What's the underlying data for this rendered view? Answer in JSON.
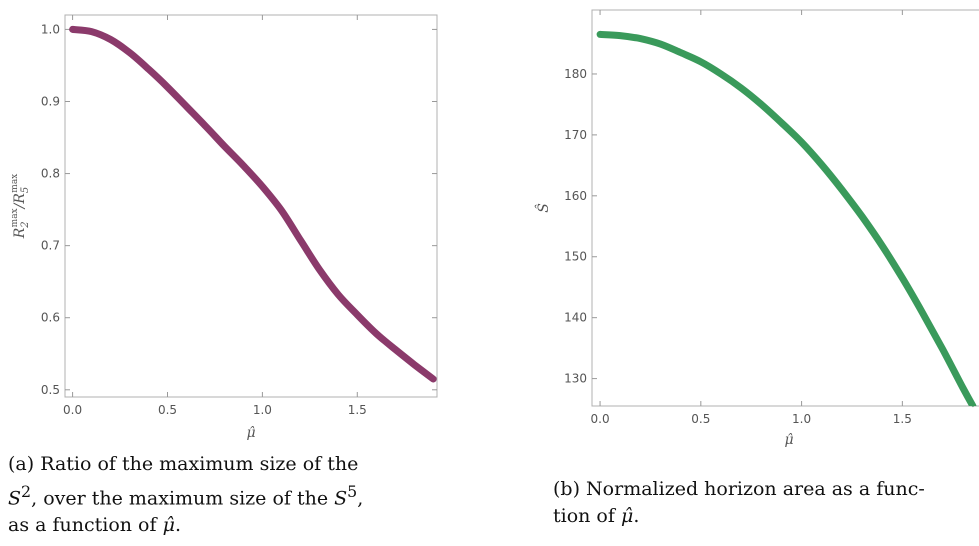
{
  "chart_data": [
    {
      "id": "a",
      "type": "line",
      "title": "",
      "xlabel": "μ̂",
      "ylabel": "R2max / R5max",
      "ylabel_parts": {
        "base1": "R",
        "sub1": "2",
        "sup1": "max",
        "sep": "/",
        "base2": "R",
        "sub2": "5",
        "sup2": "max"
      },
      "xlim": [
        -0.04,
        1.92
      ],
      "ylim": [
        0.49,
        1.02
      ],
      "xticks": [
        0.0,
        0.5,
        1.0,
        1.5
      ],
      "xtick_labels": [
        "0.0",
        "0.5",
        "1.0",
        "1.5"
      ],
      "yticks": [
        0.5,
        0.6,
        0.7,
        0.8,
        0.9,
        1.0
      ],
      "ytick_labels": [
        "0.5",
        "0.6",
        "0.7",
        "0.8",
        "0.9",
        "1.0"
      ],
      "grid": false,
      "series": [
        {
          "color": "#8b3a6b",
          "x": [
            0.0,
            0.1,
            0.2,
            0.3,
            0.4,
            0.5,
            0.6,
            0.7,
            0.8,
            0.9,
            1.0,
            1.1,
            1.2,
            1.3,
            1.4,
            1.5,
            1.6,
            1.7,
            1.8,
            1.9
          ],
          "y": [
            1.0,
            0.997,
            0.986,
            0.968,
            0.945,
            0.92,
            0.893,
            0.866,
            0.838,
            0.811,
            0.782,
            0.749,
            0.708,
            0.667,
            0.632,
            0.604,
            0.578,
            0.556,
            0.535,
            0.515
          ]
        }
      ]
    },
    {
      "id": "b",
      "type": "line",
      "title": "",
      "xlabel": "μ̂",
      "ylabel": "Ŝ",
      "xlim": [
        -0.04,
        1.92
      ],
      "ylim": [
        125.5,
        190.5
      ],
      "xticks": [
        0.0,
        0.5,
        1.0,
        1.5
      ],
      "xtick_labels": [
        "0.0",
        "0.5",
        "1.0",
        "1.5"
      ],
      "yticks": [
        130,
        140,
        150,
        160,
        170,
        180
      ],
      "ytick_labels": [
        "130",
        "140",
        "150",
        "160",
        "170",
        "180"
      ],
      "grid": false,
      "series": [
        {
          "color": "#3a9a5b",
          "x": [
            0.0,
            0.1,
            0.2,
            0.3,
            0.4,
            0.5,
            0.6,
            0.7,
            0.8,
            0.9,
            1.0,
            1.1,
            1.2,
            1.3,
            1.4,
            1.5,
            1.6,
            1.7,
            1.8,
            1.85
          ],
          "y": [
            186.5,
            186.3,
            185.8,
            184.9,
            183.5,
            182.0,
            180.0,
            177.7,
            175.0,
            172.0,
            168.8,
            165.1,
            161.0,
            156.6,
            151.8,
            146.5,
            140.8,
            134.8,
            128.5,
            125.5
          ]
        }
      ]
    }
  ],
  "captions": {
    "a": {
      "label": "(a)",
      "line1": "Ratio of the maximum size of the",
      "line2_pre": "S",
      "line2_sup": "2",
      "line2_mid": ", over the maximum size of the",
      "line2_s": "S",
      "line2_sup2": "5",
      "line2_end": ",",
      "line3": "as a function of",
      "symbol": "μ̂",
      "line3_end": "."
    },
    "b": {
      "label": "(b)",
      "line1": "Normalized horizon area as a func-",
      "line2": "tion of",
      "symbol": "μ̂",
      "line2_end": "."
    }
  }
}
